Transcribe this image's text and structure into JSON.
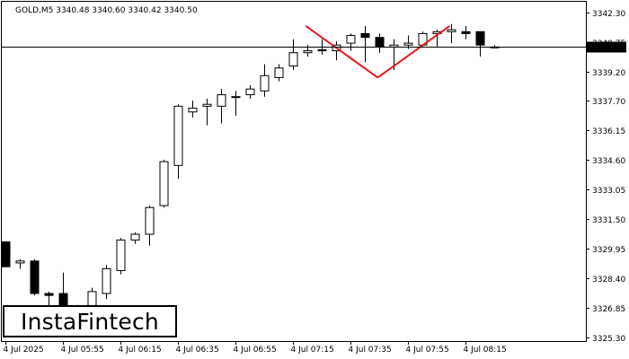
{
  "header": {
    "text": "GOLD,M5  3340.48 3340.60 3340.42 3340.50"
  },
  "logo": {
    "text": "InstaFintech"
  },
  "chart_data": {
    "type": "candlestick",
    "symbol": "GOLD",
    "timeframe": "M5",
    "ohlc_last": {
      "open": 3340.48,
      "high": 3340.6,
      "low": 3340.42,
      "close": 3340.5
    },
    "current_price_label": "3340.50",
    "current_price": 3340.5,
    "ylim": [
      3325.3,
      3342.3
    ],
    "yticks": [
      {
        "value": 3342.3,
        "label": "3342.30"
      },
      {
        "value": 3340.75,
        "label": "3340.75"
      },
      {
        "value": 3339.2,
        "label": "3339.20"
      },
      {
        "value": 3337.7,
        "label": "3337.70"
      },
      {
        "value": 3336.15,
        "label": "3336.15"
      },
      {
        "value": 3334.6,
        "label": "3334.60"
      },
      {
        "value": 3333.05,
        "label": "3333.05"
      },
      {
        "value": 3331.5,
        "label": "3331.50"
      },
      {
        "value": 3329.95,
        "label": "3329.95"
      },
      {
        "value": 3328.4,
        "label": "3328.40"
      },
      {
        "value": 3326.85,
        "label": "3326.85"
      },
      {
        "value": 3325.3,
        "label": "3325.30"
      }
    ],
    "xticks": [
      {
        "index": 0,
        "label": "4 Jul 2025"
      },
      {
        "index": 4,
        "label": "4 Jul 05:55"
      },
      {
        "index": 8,
        "label": "4 Jul 06:15"
      },
      {
        "index": 12,
        "label": "4 Jul 06:35"
      },
      {
        "index": 16,
        "label": "4 Jul 06:55"
      },
      {
        "index": 20,
        "label": "4 Jul 07:15"
      },
      {
        "index": 24,
        "label": "4 Jul 07:35"
      },
      {
        "index": 28,
        "label": "4 Jul 07:55"
      },
      {
        "index": 32,
        "label": "4 Jul 08:15"
      }
    ],
    "candles": [
      {
        "o": 3330.3,
        "h": 3330.3,
        "l": 3329.0,
        "c": 3329.0
      },
      {
        "o": 3329.2,
        "h": 3329.4,
        "l": 3328.9,
        "c": 3329.3
      },
      {
        "o": 3329.3,
        "h": 3329.4,
        "l": 3327.5,
        "c": 3327.6
      },
      {
        "o": 3327.6,
        "h": 3327.7,
        "l": 3326.8,
        "c": 3327.5
      },
      {
        "o": 3327.6,
        "h": 3328.7,
        "l": 3326.8,
        "c": 3326.9
      },
      {
        "o": 3326.9,
        "h": 3327.0,
        "l": 3326.7,
        "c": 3326.8
      },
      {
        "o": 3326.9,
        "h": 3327.9,
        "l": 3326.8,
        "c": 3327.7
      },
      {
        "o": 3327.6,
        "h": 3329.1,
        "l": 3327.3,
        "c": 3328.9
      },
      {
        "o": 3328.8,
        "h": 3330.5,
        "l": 3328.6,
        "c": 3330.4
      },
      {
        "o": 3330.4,
        "h": 3330.8,
        "l": 3330.2,
        "c": 3330.7
      },
      {
        "o": 3330.7,
        "h": 3332.2,
        "l": 3330.1,
        "c": 3332.1
      },
      {
        "o": 3332.2,
        "h": 3334.6,
        "l": 3332.1,
        "c": 3334.5
      },
      {
        "o": 3334.3,
        "h": 3337.5,
        "l": 3333.6,
        "c": 3337.4
      },
      {
        "o": 3337.1,
        "h": 3337.7,
        "l": 3336.8,
        "c": 3337.3
      },
      {
        "o": 3337.4,
        "h": 3337.8,
        "l": 3336.4,
        "c": 3337.5
      },
      {
        "o": 3337.4,
        "h": 3338.3,
        "l": 3336.5,
        "c": 3338.0
      },
      {
        "o": 3337.9,
        "h": 3338.2,
        "l": 3336.9,
        "c": 3337.9
      },
      {
        "o": 3338.0,
        "h": 3338.5,
        "l": 3337.8,
        "c": 3338.3
      },
      {
        "o": 3338.2,
        "h": 3339.6,
        "l": 3337.9,
        "c": 3339.0
      },
      {
        "o": 3338.9,
        "h": 3339.6,
        "l": 3338.7,
        "c": 3339.4
      },
      {
        "o": 3339.5,
        "h": 3340.9,
        "l": 3339.3,
        "c": 3340.2
      },
      {
        "o": 3340.2,
        "h": 3340.6,
        "l": 3340.0,
        "c": 3340.3
      },
      {
        "o": 3340.3,
        "h": 3340.9,
        "l": 3340.1,
        "c": 3340.35
      },
      {
        "o": 3340.3,
        "h": 3340.8,
        "l": 3339.8,
        "c": 3340.6
      },
      {
        "o": 3340.7,
        "h": 3341.2,
        "l": 3340.3,
        "c": 3341.1
      },
      {
        "o": 3341.2,
        "h": 3341.6,
        "l": 3339.7,
        "c": 3341.0
      },
      {
        "o": 3341.0,
        "h": 3341.2,
        "l": 3340.2,
        "c": 3340.5
      },
      {
        "o": 3340.5,
        "h": 3340.9,
        "l": 3339.3,
        "c": 3340.6
      },
      {
        "o": 3340.6,
        "h": 3341.1,
        "l": 3340.4,
        "c": 3340.7
      },
      {
        "o": 3340.6,
        "h": 3341.3,
        "l": 3340.5,
        "c": 3341.2
      },
      {
        "o": 3341.2,
        "h": 3341.4,
        "l": 3340.5,
        "c": 3341.3
      },
      {
        "o": 3341.3,
        "h": 3341.7,
        "l": 3340.7,
        "c": 3341.4
      },
      {
        "o": 3341.3,
        "h": 3341.6,
        "l": 3340.9,
        "c": 3341.2
      },
      {
        "o": 3341.3,
        "h": 3341.3,
        "l": 3340.0,
        "c": 3340.6
      },
      {
        "o": 3340.48,
        "h": 3340.6,
        "l": 3340.42,
        "c": 3340.5
      }
    ],
    "pattern": {
      "color": "#e8141c",
      "points": [
        {
          "index": 20.9,
          "price": 3341.6
        },
        {
          "index": 25.9,
          "price": 3338.9
        },
        {
          "index": 30.9,
          "price": 3341.6
        }
      ]
    },
    "colors": {
      "bull_fill": "#ffffff",
      "bear_fill": "#000000",
      "outline": "#000000"
    }
  }
}
